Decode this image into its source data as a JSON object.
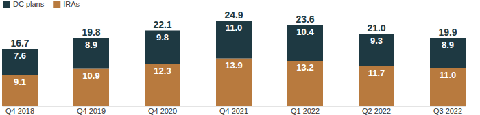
{
  "chart_data": {
    "type": "bar",
    "stacked": true,
    "data_labels": true,
    "legend": "top-left",
    "tick_labels": "x",
    "grid": false,
    "categories": [
      "Q4 2018",
      "Q4 2019",
      "Q4 2020",
      "Q4 2021",
      "Q1 2022",
      "Q2 2022",
      "Q3 2022"
    ],
    "series": [
      {
        "name": "IRAs",
        "color": "#b87a3e",
        "values": [
          9.1,
          10.9,
          12.3,
          13.9,
          13.2,
          11.7,
          11.0
        ],
        "value_labels": [
          "9.1",
          "10.9",
          "12.3",
          "13.9",
          "13.2",
          "11.7",
          "11.0"
        ]
      },
      {
        "name": "DC plans",
        "color": "#1e3942",
        "values": [
          7.6,
          8.9,
          9.8,
          11.0,
          10.4,
          9.3,
          8.9
        ],
        "value_labels": [
          "7.6",
          "8.9",
          "9.8",
          "11.0",
          "10.4",
          "9.3",
          "8.9"
        ]
      }
    ],
    "totals": [
      16.7,
      19.8,
      22.1,
      24.9,
      23.6,
      21.0,
      19.9
    ],
    "totals_labels": [
      "16.7",
      "19.8",
      "22.1",
      "24.9",
      "23.6",
      "21.0",
      "19.9"
    ],
    "ylim": [
      0,
      31
    ],
    "yticks": []
  }
}
